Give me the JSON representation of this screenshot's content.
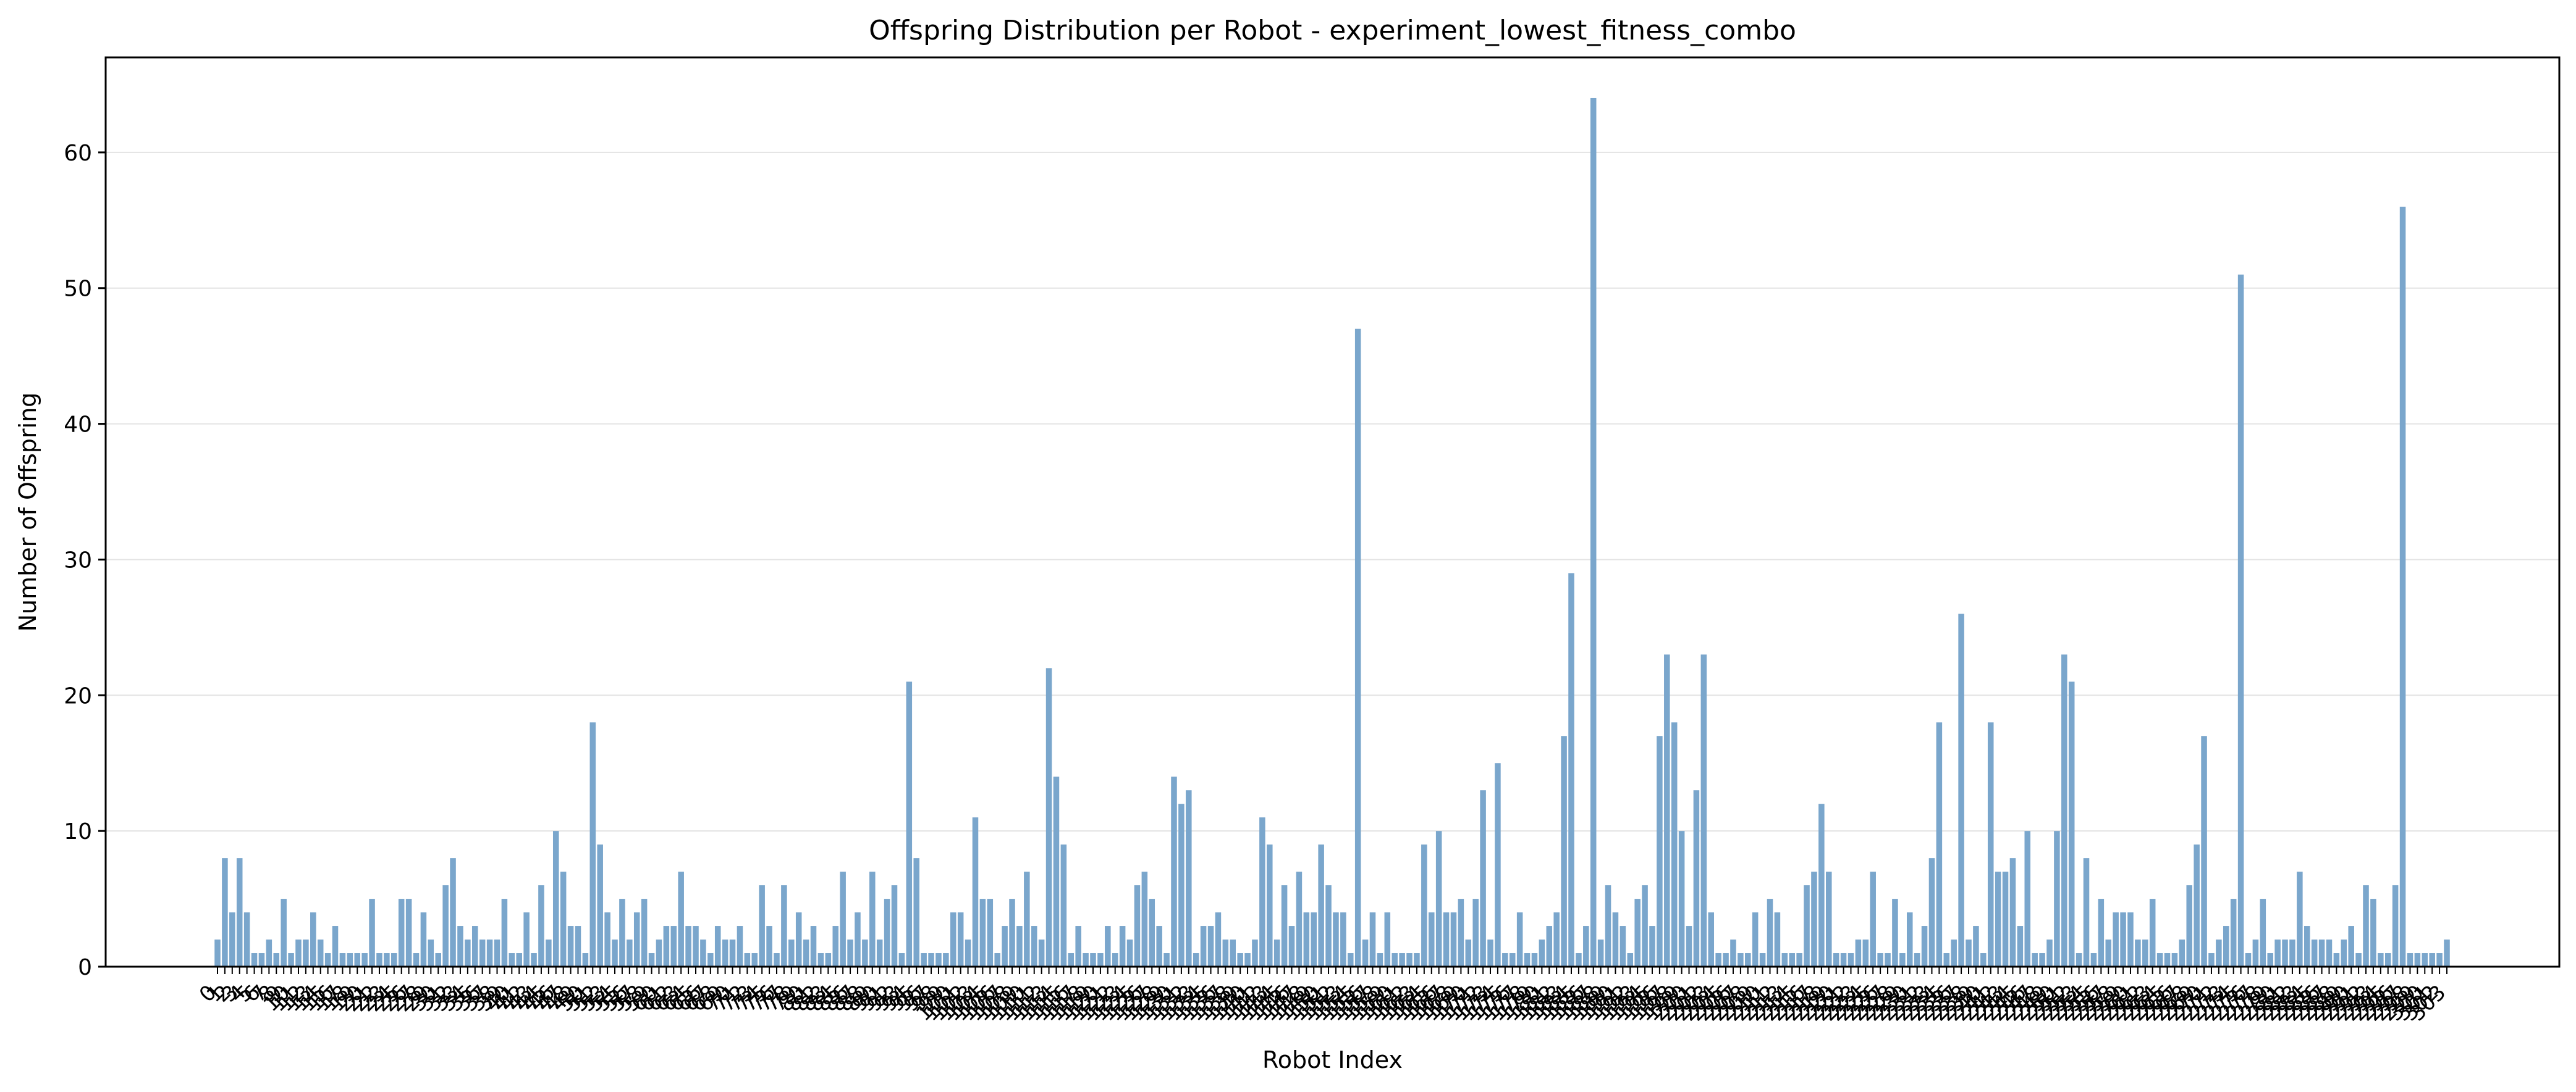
{
  "chart_data": {
    "type": "bar",
    "title": "Offspring Distribution per Robot - experiment_lowest_fitness_combo",
    "xlabel": "Robot Index",
    "ylabel": "Number of Offspring",
    "ylim": [
      0,
      67
    ],
    "yticks": [
      0,
      10,
      20,
      30,
      40,
      50,
      60
    ],
    "grid": "y",
    "bar_color": "#7aa6cc",
    "values": [
      2,
      8,
      4,
      8,
      4,
      1,
      1,
      2,
      1,
      5,
      1,
      2,
      2,
      4,
      2,
      1,
      3,
      1,
      1,
      1,
      1,
      5,
      1,
      1,
      1,
      5,
      5,
      1,
      4,
      2,
      1,
      6,
      8,
      3,
      2,
      3,
      2,
      2,
      2,
      5,
      1,
      1,
      4,
      1,
      6,
      2,
      10,
      7,
      3,
      3,
      1,
      18,
      9,
      4,
      2,
      5,
      2,
      4,
      5,
      1,
      2,
      3,
      3,
      7,
      3,
      3,
      2,
      1,
      3,
      2,
      2,
      3,
      1,
      1,
      6,
      3,
      1,
      6,
      2,
      4,
      2,
      3,
      1,
      1,
      3,
      7,
      2,
      4,
      2,
      7,
      2,
      5,
      6,
      1,
      21,
      8,
      1,
      1,
      1,
      1,
      4,
      4,
      2,
      11,
      5,
      5,
      1,
      3,
      5,
      3,
      7,
      3,
      2,
      22,
      14,
      9,
      1,
      3,
      1,
      1,
      1,
      3,
      1,
      3,
      2,
      6,
      7,
      5,
      3,
      1,
      14,
      12,
      13,
      1,
      3,
      3,
      4,
      2,
      2,
      1,
      1,
      2,
      11,
      9,
      2,
      6,
      3,
      7,
      4,
      4,
      9,
      6,
      4,
      4,
      1,
      47,
      2,
      4,
      1,
      4,
      1,
      1,
      1,
      1,
      9,
      4,
      10,
      4,
      4,
      5,
      2,
      5,
      13,
      2,
      15,
      1,
      1,
      4,
      1,
      1,
      2,
      3,
      4,
      17,
      29,
      1,
      3,
      64,
      2,
      6,
      4,
      3,
      1,
      5,
      6,
      3,
      17,
      23,
      18,
      10,
      3,
      13,
      23,
      4,
      1,
      1,
      2,
      1,
      1,
      4,
      1,
      5,
      4,
      1,
      1,
      1,
      6,
      7,
      12,
      7,
      1,
      1,
      1,
      2,
      2,
      7,
      1,
      1,
      5,
      1,
      4,
      1,
      3,
      8,
      18,
      1,
      2,
      26,
      2,
      3,
      1,
      18,
      7,
      7,
      8,
      3,
      10,
      1,
      1,
      2,
      10,
      23,
      21,
      1,
      8,
      1,
      5,
      2,
      4,
      4,
      4,
      2,
      2,
      5,
      1,
      1,
      1,
      2,
      6,
      9,
      17,
      1,
      2,
      3,
      5,
      51,
      1,
      2,
      5,
      1,
      2,
      2,
      2,
      7,
      3,
      2,
      2,
      2,
      1,
      2,
      3,
      1,
      6,
      5,
      1,
      1,
      6,
      56,
      1,
      1,
      1,
      1,
      1,
      2
    ]
  }
}
